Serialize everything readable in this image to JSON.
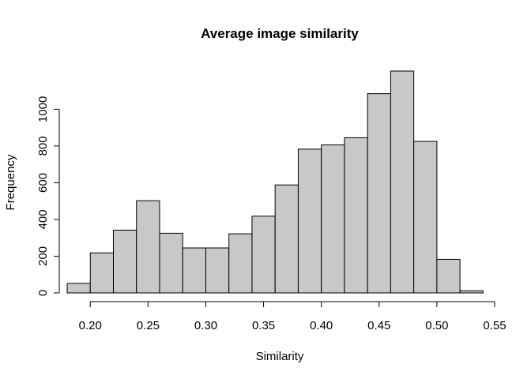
{
  "chart_data": {
    "type": "bar",
    "title": "Average image similarity",
    "xlabel": "Similarity",
    "ylabel": "Frequency",
    "bins": [
      {
        "start": 0.18,
        "end": 0.2,
        "value": 52
      },
      {
        "start": 0.2,
        "end": 0.22,
        "value": 218
      },
      {
        "start": 0.22,
        "end": 0.24,
        "value": 342
      },
      {
        "start": 0.24,
        "end": 0.26,
        "value": 502
      },
      {
        "start": 0.26,
        "end": 0.28,
        "value": 325
      },
      {
        "start": 0.28,
        "end": 0.3,
        "value": 245
      },
      {
        "start": 0.3,
        "end": 0.32,
        "value": 245
      },
      {
        "start": 0.32,
        "end": 0.34,
        "value": 322
      },
      {
        "start": 0.34,
        "end": 0.36,
        "value": 418
      },
      {
        "start": 0.36,
        "end": 0.38,
        "value": 588
      },
      {
        "start": 0.38,
        "end": 0.4,
        "value": 783
      },
      {
        "start": 0.4,
        "end": 0.42,
        "value": 806
      },
      {
        "start": 0.42,
        "end": 0.44,
        "value": 845
      },
      {
        "start": 0.44,
        "end": 0.46,
        "value": 1085
      },
      {
        "start": 0.46,
        "end": 0.48,
        "value": 1208
      },
      {
        "start": 0.48,
        "end": 0.5,
        "value": 825
      },
      {
        "start": 0.5,
        "end": 0.52,
        "value": 183
      },
      {
        "start": 0.52,
        "end": 0.54,
        "value": 12
      }
    ],
    "xlim": [
      0.18,
      0.55
    ],
    "ylim": [
      0,
      1208
    ],
    "x_ticks": [
      0.2,
      0.25,
      0.3,
      0.35,
      0.4,
      0.45,
      0.5,
      0.55
    ],
    "x_tick_labels": [
      "0.20",
      "0.25",
      "0.30",
      "0.35",
      "0.40",
      "0.45",
      "0.50",
      "0.55"
    ],
    "y_ticks": [
      0,
      200,
      400,
      600,
      800,
      1000
    ],
    "y_tick_labels": [
      "0",
      "200",
      "400",
      "600",
      "800",
      "1000"
    ],
    "grid": false,
    "bar_color": "#c8c8c8",
    "edge_color": "#000000"
  }
}
